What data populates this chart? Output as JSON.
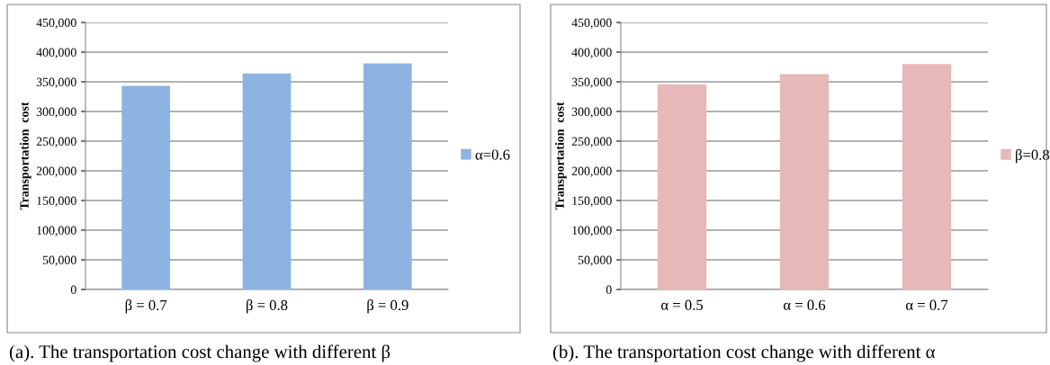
{
  "chart_data": [
    {
      "type": "bar",
      "ylabel": "Transportation  cost",
      "categories": [
        "β = 0.7",
        "β = 0.8",
        "β = 0.9"
      ],
      "series": [
        {
          "name": "α=0.6",
          "color": "#8db3e2",
          "values": [
            343000,
            364000,
            381000
          ]
        }
      ],
      "ylim": [
        0,
        450000
      ],
      "yticks": [
        {
          "value": 0,
          "label": "0"
        },
        {
          "value": 50000,
          "label": "50,000"
        },
        {
          "value": 100000,
          "label": "100,000"
        },
        {
          "value": 150000,
          "label": "150,000"
        },
        {
          "value": 200000,
          "label": "200,000"
        },
        {
          "value": 250000,
          "label": "250,000"
        },
        {
          "value": 300000,
          "label": "300,000"
        },
        {
          "value": 350000,
          "label": "350,000"
        },
        {
          "value": 400000,
          "label": "400,000"
        },
        {
          "value": 450000,
          "label": "450,000"
        }
      ],
      "grid": "y",
      "legend": "right",
      "annotations": [
        "(a). The transportation cost change with different β"
      ]
    },
    {
      "type": "bar",
      "ylabel": "Transportation  cost",
      "categories": [
        "α = 0.5",
        "α = 0.6",
        "α = 0.7"
      ],
      "series": [
        {
          "name": "β=0.8",
          "color": "#e6b8b7",
          "values": [
            346000,
            363000,
            380000
          ]
        }
      ],
      "ylim": [
        0,
        450000
      ],
      "yticks": [
        {
          "value": 0,
          "label": "0"
        },
        {
          "value": 50000,
          "label": "50,000"
        },
        {
          "value": 100000,
          "label": "100,000"
        },
        {
          "value": 150000,
          "label": "150,000"
        },
        {
          "value": 200000,
          "label": "200,000"
        },
        {
          "value": 250000,
          "label": "250,000"
        },
        {
          "value": 300000,
          "label": "300,000"
        },
        {
          "value": 350000,
          "label": "350,000"
        },
        {
          "value": 400000,
          "label": "400,000"
        },
        {
          "value": 450000,
          "label": "450,000"
        }
      ],
      "grid": "y",
      "legend": "right",
      "annotations": [
        "(b). The transportation cost change with different α"
      ]
    }
  ]
}
